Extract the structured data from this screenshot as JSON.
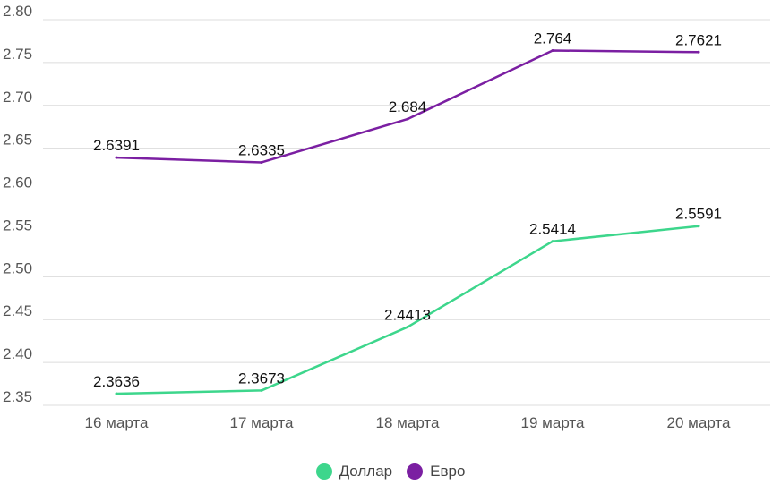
{
  "chart_data": {
    "type": "line",
    "title": "",
    "xlabel": "",
    "ylabel": "",
    "categories": [
      "16 марта",
      "17 марта",
      "18 марта",
      "19 марта",
      "20 марта"
    ],
    "ylim": [
      2.35,
      2.8
    ],
    "yticks": [
      "2.35",
      "2.40",
      "2.45",
      "2.50",
      "2.55",
      "2.60",
      "2.65",
      "2.70",
      "2.75",
      "2.80"
    ],
    "grid": true,
    "legend_position": "bottom",
    "series": [
      {
        "name": "Доллар",
        "color": "#3dd68c",
        "values": [
          2.3636,
          2.3673,
          2.4413,
          2.5414,
          2.5591
        ],
        "labels": [
          "2.3636",
          "2.3673",
          "2.4413",
          "2.5414",
          "2.5591"
        ]
      },
      {
        "name": "Евро",
        "color": "#7b1fa2",
        "values": [
          2.6391,
          2.6335,
          2.684,
          2.764,
          2.7621
        ],
        "labels": [
          "2.6391",
          "2.6335",
          "2.684",
          "2.764",
          "2.7621"
        ]
      }
    ]
  }
}
